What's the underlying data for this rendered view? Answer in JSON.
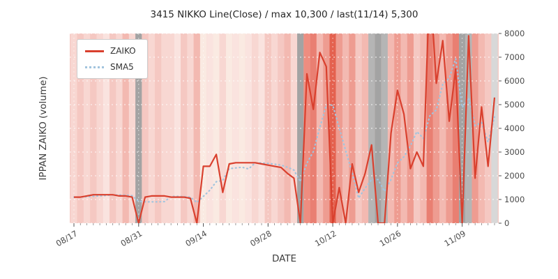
{
  "chart_data": {
    "type": "line",
    "title": "3415 NIKKO Line(Close) / max 10,300 / last(11/14) 5,300",
    "xlabel": "DATE",
    "ylabel": "IPPAN ZAIKO (volume)",
    "ylim": [
      0,
      8000
    ],
    "yticks": [
      0,
      1000,
      2000,
      3000,
      4000,
      5000,
      6000,
      7000,
      8000
    ],
    "xticks": {
      "indices": [
        0,
        10,
        20,
        30,
        40,
        50,
        60
      ],
      "labels": [
        "08/17",
        "08/31",
        "09/14",
        "09/28",
        "10/12",
        "10/26",
        "11/09"
      ]
    },
    "grid": true,
    "legend": {
      "position": "upper-left",
      "entries": [
        {
          "label": "ZAIKO",
          "color": "#d9402e",
          "style": "solid"
        },
        {
          "label": "SMA5",
          "color": "#a2c4de",
          "style": "dotted"
        }
      ]
    },
    "max_value": 10300,
    "last": {
      "date": "11/14",
      "value": 5300
    },
    "series": [
      {
        "name": "ZAIKO",
        "color": "#d9402e",
        "style": "solid",
        "values": [
          1100,
          1100,
          1150,
          1200,
          1200,
          1200,
          1200,
          1150,
          1150,
          1100,
          0,
          1100,
          1150,
          1150,
          1150,
          1100,
          1100,
          1100,
          1050,
          0,
          2400,
          2400,
          2900,
          1300,
          2500,
          2550,
          2550,
          2550,
          2550,
          2500,
          2450,
          2400,
          2350,
          2100,
          1900,
          0,
          6300,
          4800,
          7200,
          6600,
          0,
          1500,
          0,
          2500,
          1300,
          2100,
          3300,
          0,
          0,
          3800,
          5600,
          4600,
          2300,
          3000,
          2400,
          10300,
          5900,
          7700,
          4300,
          6500,
          0,
          7900,
          1900,
          4900,
          2400,
          5300
        ]
      },
      {
        "name": "SMA5",
        "color": "#a2c4de",
        "style": "dotted",
        "values": [
          1100,
          1100,
          1117,
          1138,
          1150,
          1170,
          1190,
          1190,
          1180,
          1160,
          920,
          900,
          900,
          900,
          910,
          1130,
          1130,
          1120,
          1100,
          870,
          1130,
          1390,
          1750,
          1800,
          2300,
          2330,
          2360,
          2290,
          2540,
          2540,
          2520,
          2490,
          2450,
          2360,
          2240,
          1750,
          2530,
          3020,
          4040,
          4980,
          4980,
          4020,
          3060,
          2120,
          1060,
          1480,
          1840,
          1840,
          1340,
          1840,
          2540,
          2800,
          3260,
          3860,
          3580,
          4520,
          4780,
          5860,
          6120,
          6940,
          4880,
          5280,
          4120,
          4240,
          3420,
          4480
        ]
      }
    ],
    "day_bands": [
      "#f8d7d2",
      "#f5c8c2",
      "#f8d7d2",
      "#f5c8c2",
      "#f8d7d2",
      "#fae3df",
      "#f5c8c2",
      "#f8d7d2",
      "#f3b9b1",
      "#f8d7d2",
      "#a3a3a3",
      "#f5c8c2",
      "#f8d7d2",
      "#f5c8c2",
      "#f8d7d2",
      "#f8d7d2",
      "#fae3df",
      "#f5c8c2",
      "#f8d7d2",
      "#f3b9b1",
      "#faeae2",
      "#fae3df",
      "#faeae2",
      "#f8d7d2",
      "#faeae2",
      "#fae3df",
      "#faeae2",
      "#fae3df",
      "#f8d7d2",
      "#fae3df",
      "#f5c8c2",
      "#f8d7d2",
      "#f5c8c2",
      "#f3b9b1",
      "#f8d7d2",
      "#a3a3a3",
      "#ee8d80",
      "#e97f72",
      "#f3b9b1",
      "#ee9c91",
      "#e4614f",
      "#ee9c91",
      "#f3b9b1",
      "#ee9c91",
      "#f5c8c2",
      "#f3b9b1",
      "#b5b5b5",
      "#a3a3a3",
      "#b5b5b5",
      "#f3b9b1",
      "#ee9c91",
      "#f3b9b1",
      "#ee9c91",
      "#f5c8c2",
      "#f3b9b1",
      "#e97f72",
      "#ee9c91",
      "#f3b9b1",
      "#ee9c91",
      "#e97f72",
      "#a3a3a3",
      "#b5b5b5",
      "#ee9c91",
      "#f3b9b1",
      "#f5c8c2",
      "#d8d8d8"
    ]
  },
  "colors": {
    "grid": "#ffffff",
    "tick_text": "#4a4a4a",
    "title_text": "#262626",
    "plot_base": "#f5cac4"
  }
}
